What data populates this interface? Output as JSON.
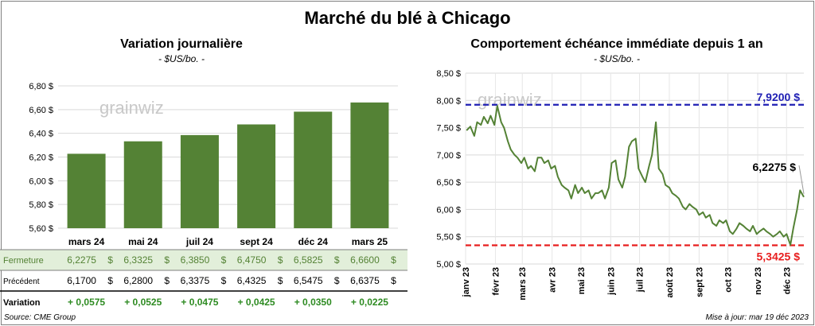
{
  "main_title": "Marché du blé à Chicago",
  "left_panel": {
    "title": "Variation  journalière",
    "subtitle": "- $US/bo. -",
    "watermark": "grainwiz"
  },
  "right_panel": {
    "title": "Comportement  échéance immédiate depuis 1 an",
    "subtitle": "- $US/bo. -",
    "watermark": "grainwiz",
    "max_label": "7,9200 $",
    "min_label": "5,3425 $",
    "last_label": "6,2275 $"
  },
  "table": {
    "rows": [
      {
        "label": "Fermeture",
        "values": [
          "6,2275",
          "6,3325",
          "6,3850",
          "6,4750",
          "6,5825",
          "6,6600"
        ],
        "unit": "$"
      },
      {
        "label": "Précédent",
        "values": [
          "6,1700",
          "6,2800",
          "6,3375",
          "6,4325",
          "6,5475",
          "6,6375"
        ],
        "unit": "$"
      },
      {
        "label": "Variation",
        "values": [
          "+ 0,0575",
          "+ 0,0525",
          "+ 0,0475",
          "+ 0,0425",
          "+ 0,0350",
          "+ 0,0225"
        ],
        "unit": ""
      }
    ]
  },
  "footer": {
    "source": "Source: CME Group",
    "updated": "Mise à jour: mar 19 déc 2023"
  },
  "colors": {
    "bar": "#548235",
    "line": "#548235",
    "max_line": "#1f1fb4",
    "min_line": "#e81e1e",
    "row_highlight": "#e2efda",
    "positive": "#2e8b22"
  },
  "chart_data": [
    {
      "type": "bar",
      "categories": [
        "mars 24",
        "mai 24",
        "juil 24",
        "sept 24",
        "déc 24",
        "mars 25"
      ],
      "values": [
        6.2275,
        6.3325,
        6.385,
        6.475,
        6.5825,
        6.66
      ],
      "ylim": [
        5.6,
        6.8
      ],
      "yticks": [
        5.6,
        5.8,
        6.0,
        6.2,
        6.4,
        6.6,
        6.8
      ],
      "ytick_labels": [
        "5,60 $",
        "5,80 $",
        "6,00 $",
        "6,20 $",
        "6,40 $",
        "6,60 $",
        "6,80 $"
      ],
      "grid": true
    },
    {
      "type": "line",
      "ylim": [
        5.0,
        8.5
      ],
      "yticks": [
        5.0,
        5.5,
        6.0,
        6.5,
        7.0,
        7.5,
        8.0,
        8.5
      ],
      "ytick_labels": [
        "5,00 $",
        "5,50 $",
        "6,00 $",
        "6,50 $",
        "7,00 $",
        "7,50 $",
        "8,00 $",
        "8,50 $"
      ],
      "xlim": [
        "2023-01-01",
        "2023-12-19"
      ],
      "xticks": [
        "2023-01-01",
        "2023-02-01",
        "2023-03-01",
        "2023-04-01",
        "2023-05-01",
        "2023-06-01",
        "2023-07-01",
        "2023-08-01",
        "2023-09-01",
        "2023-10-01",
        "2023-11-01",
        "2023-12-01"
      ],
      "xtick_labels": [
        "janv 23",
        "févr 23",
        "mars 23",
        "avr 23",
        "mai 23",
        "juin 23",
        "juil 23",
        "août 23",
        "sept 23",
        "oct 23",
        "nov 23",
        "déc 23"
      ],
      "reference_lines": [
        7.92,
        5.3425
      ],
      "grid": true,
      "x": [
        "2023-01-02",
        "2023-01-06",
        "2023-01-10",
        "2023-01-13",
        "2023-01-17",
        "2023-01-20",
        "2023-01-24",
        "2023-01-27",
        "2023-01-31",
        "2023-02-03",
        "2023-02-07",
        "2023-02-10",
        "2023-02-14",
        "2023-02-17",
        "2023-02-21",
        "2023-02-24",
        "2023-02-28",
        "2023-03-03",
        "2023-03-07",
        "2023-03-10",
        "2023-03-14",
        "2023-03-17",
        "2023-03-21",
        "2023-03-24",
        "2023-03-28",
        "2023-03-31",
        "2023-04-04",
        "2023-04-07",
        "2023-04-11",
        "2023-04-14",
        "2023-04-18",
        "2023-04-21",
        "2023-04-25",
        "2023-04-28",
        "2023-05-02",
        "2023-05-05",
        "2023-05-09",
        "2023-05-12",
        "2023-05-16",
        "2023-05-19",
        "2023-05-23",
        "2023-05-26",
        "2023-05-30",
        "2023-06-02",
        "2023-06-06",
        "2023-06-09",
        "2023-06-13",
        "2023-06-16",
        "2023-06-20",
        "2023-06-23",
        "2023-06-27",
        "2023-06-30",
        "2023-07-04",
        "2023-07-07",
        "2023-07-11",
        "2023-07-14",
        "2023-07-18",
        "2023-07-21",
        "2023-07-25",
        "2023-07-28",
        "2023-08-01",
        "2023-08-04",
        "2023-08-08",
        "2023-08-11",
        "2023-08-15",
        "2023-08-18",
        "2023-08-22",
        "2023-08-25",
        "2023-08-29",
        "2023-09-01",
        "2023-09-05",
        "2023-09-08",
        "2023-09-12",
        "2023-09-15",
        "2023-09-19",
        "2023-09-22",
        "2023-09-26",
        "2023-09-29",
        "2023-10-03",
        "2023-10-06",
        "2023-10-10",
        "2023-10-13",
        "2023-10-17",
        "2023-10-20",
        "2023-10-24",
        "2023-10-27",
        "2023-10-31",
        "2023-11-03",
        "2023-11-07",
        "2023-11-10",
        "2023-11-14",
        "2023-11-17",
        "2023-11-21",
        "2023-11-24",
        "2023-11-28",
        "2023-12-01",
        "2023-12-05",
        "2023-12-08",
        "2023-12-12",
        "2023-12-15",
        "2023-12-19"
      ],
      "y": [
        7.45,
        7.52,
        7.35,
        7.6,
        7.55,
        7.7,
        7.58,
        7.72,
        7.55,
        7.9,
        7.6,
        7.5,
        7.25,
        7.1,
        7.0,
        6.95,
        6.85,
        6.95,
        6.75,
        6.8,
        6.7,
        6.95,
        6.95,
        6.85,
        6.9,
        6.75,
        6.8,
        6.6,
        6.45,
        6.4,
        6.35,
        6.2,
        6.45,
        6.3,
        6.4,
        6.3,
        6.35,
        6.2,
        6.3,
        6.3,
        6.35,
        6.2,
        6.4,
        6.85,
        6.9,
        6.55,
        6.4,
        6.6,
        7.15,
        7.25,
        7.3,
        6.75,
        6.6,
        6.5,
        6.8,
        7.0,
        7.6,
        6.75,
        6.65,
        6.45,
        6.4,
        6.3,
        6.25,
        6.2,
        6.05,
        6.0,
        6.1,
        6.05,
        6.0,
        5.9,
        5.95,
        5.85,
        5.9,
        5.75,
        5.7,
        5.8,
        5.75,
        5.8,
        5.6,
        5.55,
        5.65,
        5.75,
        5.7,
        5.65,
        5.6,
        5.7,
        5.55,
        5.6,
        5.65,
        5.6,
        5.55,
        5.5,
        5.55,
        5.6,
        5.5,
        5.55,
        5.35,
        5.65,
        6.0,
        6.35,
        6.2275
      ]
    }
  ]
}
